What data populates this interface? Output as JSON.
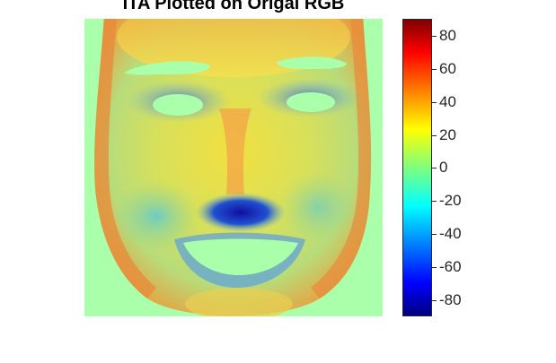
{
  "title": "ITA Plotted on Origal RGB",
  "colorbar": {
    "tick_labels": [
      "80",
      "60",
      "40",
      "20",
      "0",
      "-20",
      "-40",
      "-60",
      "-80"
    ],
    "colormap": "jet",
    "colors": {
      "low": "#00007f",
      "mid": "#7fff7f",
      "high": "#7f0000"
    }
  },
  "image": {
    "description_hidden": "",
    "background_color": "#aaffaa"
  }
}
